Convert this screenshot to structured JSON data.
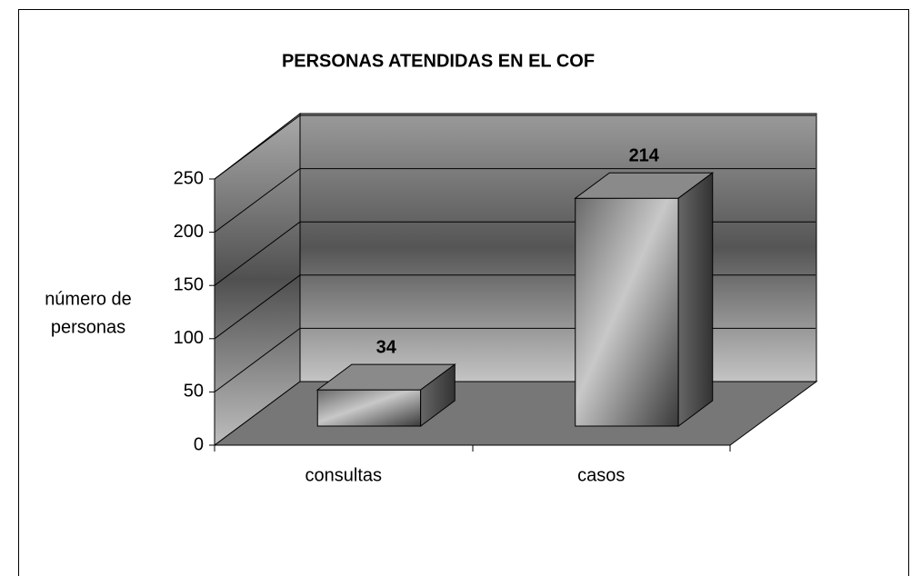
{
  "chart_data": {
    "type": "bar3d",
    "title": "PERSONAS ATENDIDAS EN EL COF",
    "y_label": [
      "número de",
      "personas"
    ],
    "categories": [
      "consultas",
      "casos"
    ],
    "values": [
      34,
      214
    ],
    "ylim": [
      0,
      250
    ],
    "yticks": [
      0,
      50,
      100,
      150,
      200,
      250
    ],
    "grid": true,
    "color": "#a0a0a0"
  }
}
